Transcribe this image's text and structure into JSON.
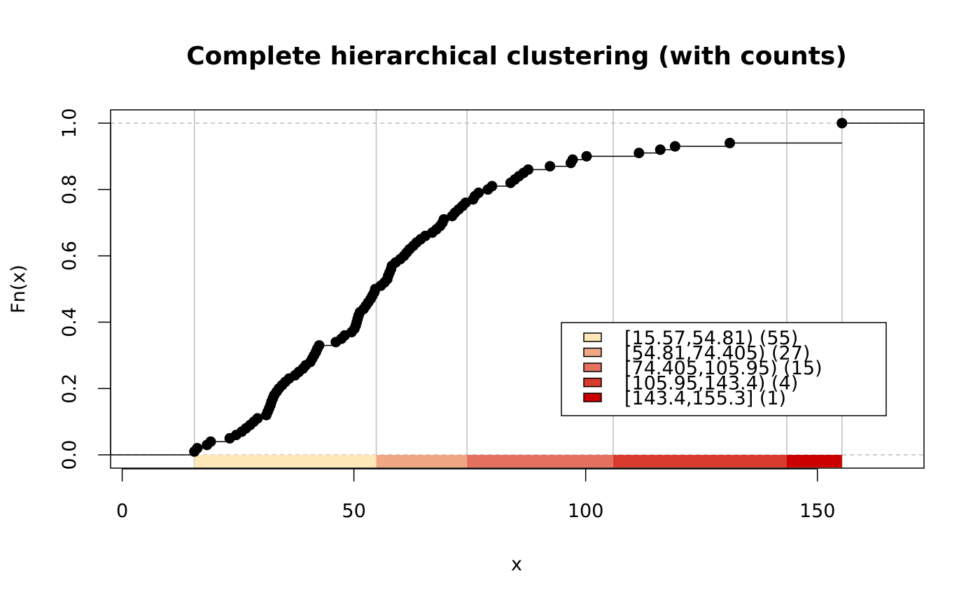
{
  "chart_data": {
    "type": "step",
    "title": "Complete hierarchical clustering (with counts)",
    "xlabel": "x",
    "ylabel": "Fn(x)",
    "xlim": [
      -2.5,
      173
    ],
    "ylim": [
      -0.04,
      1.04
    ],
    "x_ticks": [
      0,
      50,
      100,
      150
    ],
    "y_ticks": [
      0.0,
      0.2,
      0.4,
      0.6,
      0.8,
      1.0
    ],
    "x_tick_labels": [
      "0",
      "50",
      "100",
      "150"
    ],
    "y_tick_labels": [
      "0.0",
      "0.2",
      "0.4",
      "0.6",
      "0.8",
      "1.0"
    ],
    "horizontal_reference_lines": [
      0,
      1
    ],
    "break_lines": [
      15.57,
      54.81,
      74.405,
      105.95,
      143.4,
      155.3
    ],
    "intervals": [
      {
        "from": 15.57,
        "to": 54.81,
        "count": 55,
        "label": "[15.57,54.81) (55)",
        "color": "#fee8b8"
      },
      {
        "from": 54.81,
        "to": 74.405,
        "count": 27,
        "label": "[54.81,74.405) (27)",
        "color": "#f0a884"
      },
      {
        "from": 74.405,
        "to": 105.95,
        "count": 15,
        "label": "[74.405,105.95) (15)",
        "color": "#e67060"
      },
      {
        "from": 105.95,
        "to": 143.4,
        "count": 4,
        "label": "[105.95,143.4) (4)",
        "color": "#d93a2e"
      },
      {
        "from": 143.4,
        "to": 155.3,
        "count": 1,
        "label": "[143.4,155.3] (1)",
        "color": "#cc0000"
      }
    ],
    "legend_position": "right",
    "points_x": [
      15.57,
      16.2,
      18.3,
      19.1,
      23.2,
      24.6,
      25.8,
      26.7,
      27.6,
      28.4,
      29.2,
      31.1,
      31.4,
      31.7,
      32.0,
      32.2,
      32.5,
      32.8,
      33.3,
      33.8,
      34.5,
      35.2,
      36.0,
      37.3,
      38.1,
      39.0,
      39.6,
      40.6,
      41.0,
      41.4,
      41.8,
      42.1,
      42.5,
      46.1,
      47.3,
      48.0,
      49.5,
      50.1,
      50.4,
      50.6,
      50.8,
      51.0,
      51.3,
      52.1,
      52.6,
      53.1,
      53.6,
      54.0,
      54.4,
      54.6,
      55.8,
      56.6,
      57.2,
      57.4,
      57.7,
      58.0,
      58.2,
      59.0,
      60.0,
      60.8,
      61.4,
      62.0,
      62.8,
      63.5,
      64.4,
      65.4,
      66.9,
      67.8,
      68.6,
      69.1,
      69.4,
      71.2,
      71.8,
      72.6,
      73.4,
      74.1,
      75.7,
      76.1,
      76.9,
      78.9,
      79.8,
      83.8,
      84.7,
      85.6,
      86.6,
      87.6,
      92.3,
      96.8,
      97.2,
      100.2,
      111.5,
      116.1,
      119.3,
      131.1,
      155.3
    ],
    "points_y": [
      0.01,
      0.02,
      0.03,
      0.04,
      0.05,
      0.06,
      0.07,
      0.08,
      0.09,
      0.1,
      0.11,
      0.12,
      0.13,
      0.14,
      0.15,
      0.16,
      0.17,
      0.18,
      0.19,
      0.2,
      0.21,
      0.22,
      0.23,
      0.24,
      0.25,
      0.26,
      0.27,
      0.28,
      0.29,
      0.3,
      0.31,
      0.32,
      0.33,
      0.34,
      0.35,
      0.36,
      0.37,
      0.38,
      0.39,
      0.4,
      0.41,
      0.42,
      0.43,
      0.44,
      0.45,
      0.46,
      0.47,
      0.48,
      0.49,
      0.5,
      0.51,
      0.52,
      0.53,
      0.54,
      0.55,
      0.56,
      0.57,
      0.58,
      0.59,
      0.6,
      0.61,
      0.62,
      0.63,
      0.64,
      0.65,
      0.66,
      0.67,
      0.68,
      0.69,
      0.7,
      0.71,
      0.72,
      0.73,
      0.74,
      0.75,
      0.76,
      0.77,
      0.78,
      0.79,
      0.8,
      0.81,
      0.82,
      0.83,
      0.84,
      0.85,
      0.86,
      0.87,
      0.88,
      0.89,
      0.9,
      0.91,
      0.92,
      0.93,
      0.94,
      1.0
    ],
    "colors": {
      "points": "#000000",
      "grid": "#bebebe",
      "ref_line": "#bebebe"
    }
  }
}
